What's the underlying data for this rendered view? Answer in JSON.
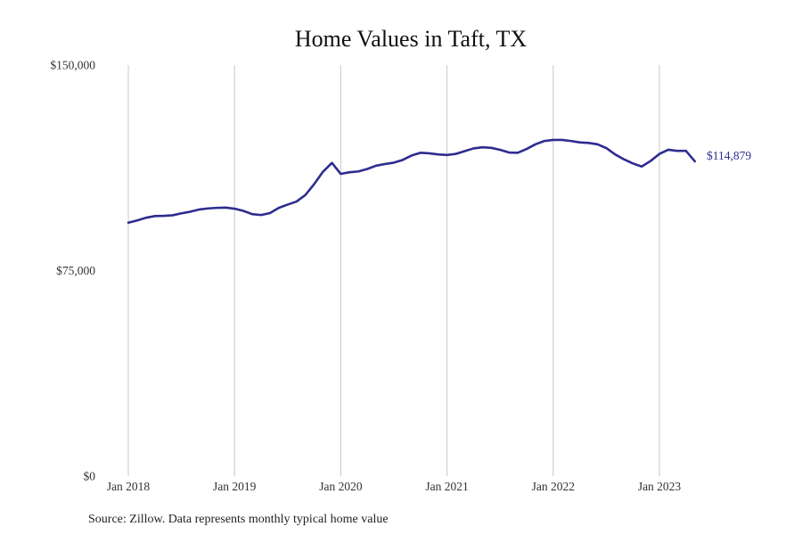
{
  "chart_data": {
    "type": "line",
    "title": "Home Values in Taft, TX",
    "xlabel": "",
    "ylabel": "",
    "x_tick_labels": [
      "Jan 2018",
      "Jan 2019",
      "Jan 2020",
      "Jan 2021",
      "Jan 2022",
      "Jan 2023"
    ],
    "y_tick_labels": [
      "$150,000",
      "$75,000",
      "$0"
    ],
    "y_ticks": [
      150000,
      75000,
      0
    ],
    "ylim": [
      0,
      150000
    ],
    "xlim": [
      "2018-01",
      "2023-12"
    ],
    "grid": "vertical",
    "legend": "none",
    "line_color": "#2e2c8f",
    "grid_color": "#c8c8c8",
    "end_label": "$114,879",
    "series": [
      {
        "x": [
          "2018-01",
          "2018-02",
          "2018-03",
          "2018-04",
          "2018-05",
          "2018-06",
          "2018-07",
          "2018-08",
          "2018-09",
          "2018-10",
          "2018-11",
          "2018-12",
          "2019-01",
          "2019-02",
          "2019-03",
          "2019-04",
          "2019-05",
          "2019-06",
          "2019-07",
          "2019-08",
          "2019-09",
          "2019-10",
          "2019-11",
          "2019-12",
          "2020-01",
          "2020-02",
          "2020-03",
          "2020-04",
          "2020-05",
          "2020-06",
          "2020-07",
          "2020-08",
          "2020-09",
          "2020-10",
          "2020-11",
          "2020-12",
          "2021-01",
          "2021-02",
          "2021-03",
          "2021-04",
          "2021-05",
          "2021-06",
          "2021-07",
          "2021-08",
          "2021-09",
          "2021-10",
          "2021-11",
          "2021-12",
          "2022-01",
          "2022-02",
          "2022-03",
          "2022-04",
          "2022-05",
          "2022-06",
          "2022-07",
          "2022-08",
          "2022-09",
          "2022-10",
          "2022-11",
          "2022-12",
          "2023-01",
          "2023-02",
          "2023-03",
          "2023-04",
          "2023-05"
        ],
        "values": [
          92500,
          93300,
          94300,
          94900,
          95000,
          95200,
          95900,
          96500,
          97300,
          97700,
          97900,
          98000,
          97600,
          96800,
          95600,
          95300,
          96000,
          97900,
          99100,
          100200,
          102600,
          106600,
          111100,
          114300,
          110300,
          110900,
          111200,
          112100,
          113300,
          113900,
          114400,
          115400,
          117000,
          118000,
          117800,
          117400,
          117200,
          117600,
          118600,
          119600,
          120000,
          119800,
          119100,
          118100,
          118000,
          119400,
          121100,
          122300,
          122700,
          122700,
          122300,
          121800,
          121600,
          121100,
          119700,
          117400,
          115600,
          114100,
          113000,
          115000,
          117600,
          119100,
          118700,
          118700,
          114879
        ]
      }
    ]
  },
  "source_note": "Source: Zillow. Data represents monthly typical home value"
}
